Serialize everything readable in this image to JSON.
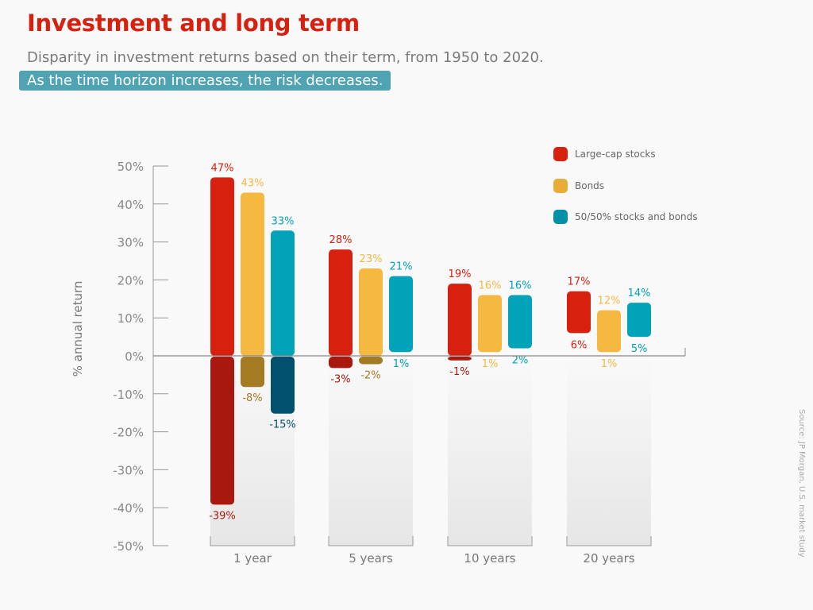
{
  "title": "Investment and long term",
  "subtitle": "Disparity in investment returns based on their term, from 1950 to 2020.",
  "banner": "As the time horizon increases, the risk decreases.",
  "source": "Source: JP Morgan, U.S. market study",
  "colors": {
    "title": "#d8200f",
    "banner": "#4fa3b3"
  },
  "chart_data": {
    "type": "bar",
    "subtype": "floating range bars (min to max annual return)",
    "ylabel": "% annual return",
    "ylim": [
      -50,
      50
    ],
    "yticks": [
      "50%",
      "40%",
      "30%",
      "20%",
      "10%",
      "0%",
      "-10%",
      "-20%",
      "-30%",
      "-40%",
      "-50%"
    ],
    "categories": [
      "1 year",
      "5 years",
      "10 years",
      "20 years"
    ],
    "legend_position": "top-right",
    "series": [
      {
        "name": "Large-cap stocks",
        "color": "#d8200f",
        "dark": "#a8180f",
        "max": [
          47,
          28,
          19,
          17
        ],
        "min": [
          -39,
          -3,
          -1,
          6
        ],
        "max_labels": [
          "47%",
          "28%",
          "19%",
          "17%"
        ],
        "min_labels": [
          "-39%",
          "-3%",
          "-1%",
          "6%"
        ]
      },
      {
        "name": "Bonds",
        "color": "#f5b942",
        "dark": "#a47a22",
        "max": [
          43,
          23,
          16,
          12
        ],
        "min": [
          -8,
          -2,
          1,
          1
        ],
        "max_labels": [
          "43%",
          "23%",
          "16%",
          "12%"
        ],
        "min_labels": [
          "-8%",
          "-2%",
          "1%",
          "1%"
        ]
      },
      {
        "name": "50/50% stocks and bonds",
        "color": "#00a3b8",
        "dark": "#00506e",
        "max": [
          33,
          21,
          16,
          14
        ],
        "min": [
          -15,
          1,
          2,
          5
        ],
        "max_labels": [
          "33%",
          "21%",
          "16%",
          "14%"
        ],
        "min_labels": [
          "-15%",
          "1%",
          "2%",
          "5%"
        ]
      }
    ]
  }
}
